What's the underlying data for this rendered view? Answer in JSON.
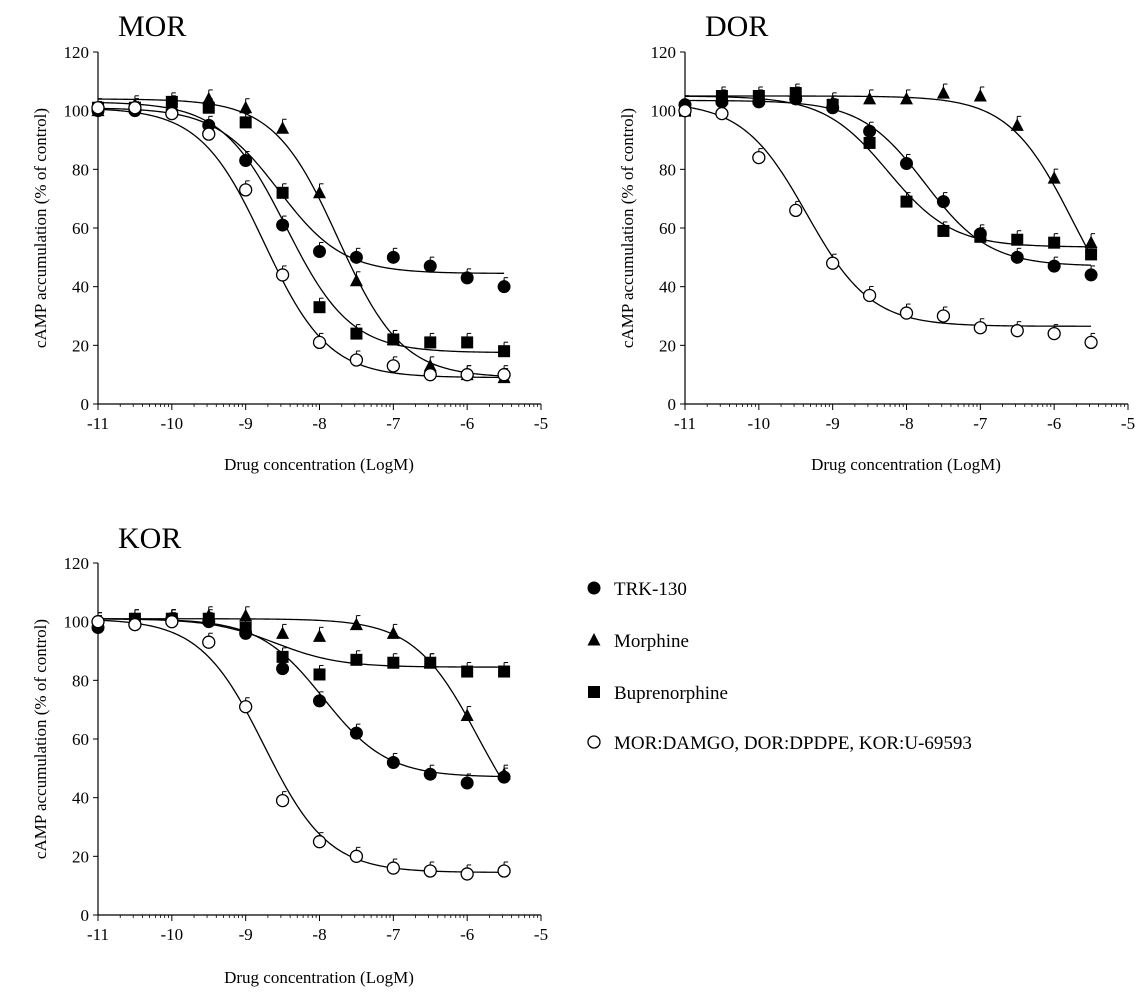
{
  "chart_data": [
    {
      "type": "scatter",
      "title": "MOR",
      "xlabel": "Drug concentration (LogM)",
      "ylabel": "cAMP accumulation (% of control)",
      "xlim": [
        -11,
        -5
      ],
      "ylim": [
        0,
        120
      ],
      "x_ticks": [
        "-11",
        "-10",
        "-9",
        "-8",
        "-7",
        "-6",
        "-5"
      ],
      "y_ticks": [
        "0",
        "20",
        "40",
        "60",
        "80",
        "100",
        "120"
      ],
      "x_scale": "log concentration axis with minor ticks",
      "grid": false,
      "series": [
        {
          "name": "TRK-130",
          "marker": "filled-circle",
          "x": [
            -11,
            -10.5,
            -10,
            -9.5,
            -9,
            -8.5,
            -8,
            -7.5,
            -7,
            -6.5,
            -6,
            -5.5
          ],
          "y": [
            100,
            100,
            99,
            95,
            83,
            61,
            52,
            50,
            50,
            47,
            43,
            40
          ],
          "fit": {
            "top": 101,
            "bottom": 44.5,
            "logEC50": -8.55,
            "hill": 1.0
          }
        },
        {
          "name": "Morphine",
          "marker": "filled-triangle",
          "x": [
            -11,
            -10.5,
            -10,
            -9.5,
            -9,
            -8.5,
            -8,
            -7.5,
            -7,
            -6.5,
            -6,
            -5.5
          ],
          "y": [
            100,
            102,
            102,
            104,
            101,
            94,
            72,
            42,
            22,
            13,
            10,
            9
          ],
          "fit": {
            "top": 104,
            "bottom": 9,
            "logEC50": -7.75,
            "hill": 1.0
          }
        },
        {
          "name": "Buprenorphine",
          "marker": "filled-square",
          "x": [
            -11,
            -10.5,
            -10,
            -9.5,
            -9,
            -8.5,
            -8,
            -7.5,
            -7,
            -6.5,
            -6,
            -5.5
          ],
          "y": [
            101,
            101,
            103,
            101,
            96,
            72,
            33,
            24,
            22,
            21,
            21,
            18
          ],
          "fit": {
            "top": 103,
            "bottom": 17.5,
            "logEC50": -8.45,
            "hill": 1.0
          }
        },
        {
          "name": "MOR:DAMGO, DOR:DPDPE, KOR:U-69593",
          "marker": "open-circle",
          "x": [
            -11,
            -10.5,
            -10,
            -9.5,
            -9,
            -8.5,
            -8,
            -7.5,
            -7,
            -6.5,
            -6,
            -5.5
          ],
          "y": [
            101,
            101,
            99,
            92,
            73,
            44,
            21,
            15,
            13,
            10,
            10,
            10
          ],
          "fit": {
            "top": 101,
            "bottom": 9,
            "logEC50": -8.75,
            "hill": 1.0
          }
        }
      ]
    },
    {
      "type": "scatter",
      "title": "DOR",
      "xlabel": "Drug concentration (LogM)",
      "ylabel": "cAMP accumulation (% of control)",
      "xlim": [
        -11,
        -5
      ],
      "ylim": [
        0,
        120
      ],
      "x_ticks": [
        "-11",
        "-10",
        "-9",
        "-8",
        "-7",
        "-6",
        "-5"
      ],
      "y_ticks": [
        "0",
        "20",
        "40",
        "60",
        "80",
        "100",
        "120"
      ],
      "x_scale": "log concentration axis with minor ticks",
      "grid": false,
      "series": [
        {
          "name": "TRK-130",
          "marker": "filled-circle",
          "x": [
            -11,
            -10.5,
            -10,
            -9.5,
            -9,
            -8.5,
            -8,
            -7.5,
            -7,
            -6.5,
            -6,
            -5.5
          ],
          "y": [
            102,
            103,
            103,
            104,
            101,
            93,
            82,
            69,
            58,
            50,
            47,
            44
          ],
          "fit": {
            "top": 103.5,
            "bottom": 47,
            "logEC50": -7.75,
            "hill": 1.0
          }
        },
        {
          "name": "Morphine",
          "marker": "filled-triangle",
          "x": [
            -11,
            -10.5,
            -10,
            -9.5,
            -9,
            -8.5,
            -8,
            -7.5,
            -7,
            -6.5,
            -6,
            -5.5
          ],
          "y": [
            102,
            104,
            104,
            105,
            103,
            104,
            104,
            106,
            105,
            95,
            77,
            55
          ],
          "fit": {
            "top": 105,
            "bottom": 20,
            "logEC50": -5.75,
            "hill": 1.0
          }
        },
        {
          "name": "Buprenorphine",
          "marker": "filled-square",
          "x": [
            -11,
            -10.5,
            -10,
            -9.5,
            -9,
            -8.5,
            -8,
            -7.5,
            -7,
            -6.5,
            -6,
            -5.5
          ],
          "y": [
            100,
            105,
            105,
            106,
            102,
            89,
            69,
            59,
            57,
            56,
            55,
            51
          ],
          "fit": {
            "top": 105,
            "bottom": 53.5,
            "logEC50": -8.25,
            "hill": 1.0
          }
        },
        {
          "name": "MOR:DAMGO, DOR:DPDPE, KOR:U-69593",
          "marker": "open-circle",
          "x": [
            -11,
            -10.5,
            -10,
            -9.5,
            -9,
            -8.5,
            -8,
            -7.5,
            -7,
            -6.5,
            -6,
            -5.5
          ],
          "y": [
            100,
            99,
            84,
            66,
            48,
            37,
            31,
            30,
            26,
            25,
            24,
            21
          ],
          "fit": {
            "top": 103,
            "bottom": 26.5,
            "logEC50": -9.35,
            "hill": 1.0
          }
        }
      ]
    },
    {
      "type": "scatter",
      "title": "KOR",
      "xlabel": "Drug concentration (LogM)",
      "ylabel": "cAMP accumulation (% of control)",
      "xlim": [
        -11,
        -5
      ],
      "ylim": [
        0,
        120
      ],
      "x_ticks": [
        "-11",
        "-10",
        "-9",
        "-8",
        "-7",
        "-6",
        "-5"
      ],
      "y_ticks": [
        "0",
        "20",
        "40",
        "60",
        "80",
        "100",
        "120"
      ],
      "x_scale": "log concentration axis with minor ticks",
      "grid": false,
      "series": [
        {
          "name": "TRK-130",
          "marker": "filled-circle",
          "x": [
            -11,
            -10.5,
            -10,
            -9.5,
            -9,
            -8.5,
            -8,
            -7.5,
            -7,
            -6.5,
            -6,
            -5.5
          ],
          "y": [
            98,
            99,
            101,
            100,
            96,
            84,
            73,
            62,
            52,
            48,
            45,
            47
          ],
          "fit": {
            "top": 101,
            "bottom": 47,
            "logEC50": -7.95,
            "hill": 1.0
          }
        },
        {
          "name": "Morphine",
          "marker": "filled-triangle",
          "x": [
            -11,
            -10.5,
            -10,
            -9.5,
            -9,
            -8.5,
            -8,
            -7.5,
            -7,
            -6.5,
            -6,
            -5.5
          ],
          "y": [
            100,
            101,
            101,
            102,
            102,
            96,
            95,
            99,
            96,
            86,
            68,
            48
          ],
          "fit": {
            "top": 101,
            "bottom": 20,
            "logEC50": -5.85,
            "hill": 1.0
          }
        },
        {
          "name": "Buprenorphine",
          "marker": "filled-square",
          "x": [
            -11,
            -10.5,
            -10,
            -9.5,
            -9,
            -8.5,
            -8,
            -7.5,
            -7,
            -6.5,
            -6,
            -5.5
          ],
          "y": [
            99,
            101,
            101,
            101,
            98,
            88,
            82,
            87,
            86,
            86,
            83,
            83
          ],
          "fit": {
            "top": 101,
            "bottom": 84.5,
            "logEC50": -8.6,
            "hill": 1.0
          }
        },
        {
          "name": "MOR:DAMGO, DOR:DPDPE, KOR:U-69593",
          "marker": "open-circle",
          "x": [
            -11,
            -10.5,
            -10,
            -9.5,
            -9,
            -8.5,
            -8,
            -7.5,
            -7,
            -6.5,
            -6,
            -5.5
          ],
          "y": [
            100,
            99,
            100,
            93,
            71,
            39,
            25,
            20,
            16,
            15,
            14,
            15
          ],
          "fit": {
            "top": 101,
            "bottom": 14.5,
            "logEC50": -8.75,
            "hill": 1.0
          }
        }
      ]
    }
  ],
  "legend": {
    "placement": "right of KOR panel",
    "items": [
      {
        "label": "TRK-130",
        "marker": "filled-circle"
      },
      {
        "label": "Morphine",
        "marker": "filled-triangle"
      },
      {
        "label": "Buprenorphine",
        "marker": "filled-square"
      },
      {
        "label": "MOR:DAMGO, DOR:DPDPE, KOR:U-69593",
        "marker": "open-circle"
      }
    ]
  },
  "colors": {
    "marker": "#000000",
    "open_marker_fill": "#ffffff",
    "axis": "#000000",
    "background": "#ffffff"
  }
}
